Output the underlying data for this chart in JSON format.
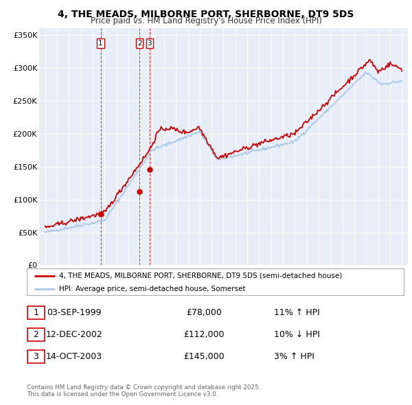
{
  "title": "4, THE MEADS, MILBORNE PORT, SHERBORNE, DT9 5DS",
  "subtitle": "Price paid vs. HM Land Registry's House Price Index (HPI)",
  "legend_line1": "4, THE MEADS, MILBORNE PORT, SHERBORNE, DT9 5DS (semi-detached house)",
  "legend_line2": "HPI: Average price, semi-detached house, Somerset",
  "line_color": "#cc0000",
  "hpi_color": "#a8c8e8",
  "background_color": "#e8eef8",
  "transactions": [
    {
      "num": 1,
      "date_x": 1999.67,
      "price": 78000
    },
    {
      "num": 2,
      "date_x": 2002.94,
      "price": 112000
    },
    {
      "num": 3,
      "date_x": 2003.78,
      "price": 145000
    }
  ],
  "table_rows": [
    {
      "num": "1",
      "date": "03-SEP-1999",
      "price": "£78,000",
      "hpi": "11% ↑ HPI"
    },
    {
      "num": "2",
      "date": "12-DEC-2002",
      "price": "£112,000",
      "hpi": "10% ↓ HPI"
    },
    {
      "num": "3",
      "date": "14-OCT-2003",
      "price": "£145,000",
      "hpi": "3% ↑ HPI"
    }
  ],
  "footer": "Contains HM Land Registry data © Crown copyright and database right 2025.\nThis data is licensed under the Open Government Licence v3.0.",
  "ylim": [
    0,
    360000
  ],
  "yticks": [
    0,
    50000,
    100000,
    150000,
    200000,
    250000,
    300000,
    350000
  ],
  "xlim_start": 1994.5,
  "xlim_end": 2025.5
}
